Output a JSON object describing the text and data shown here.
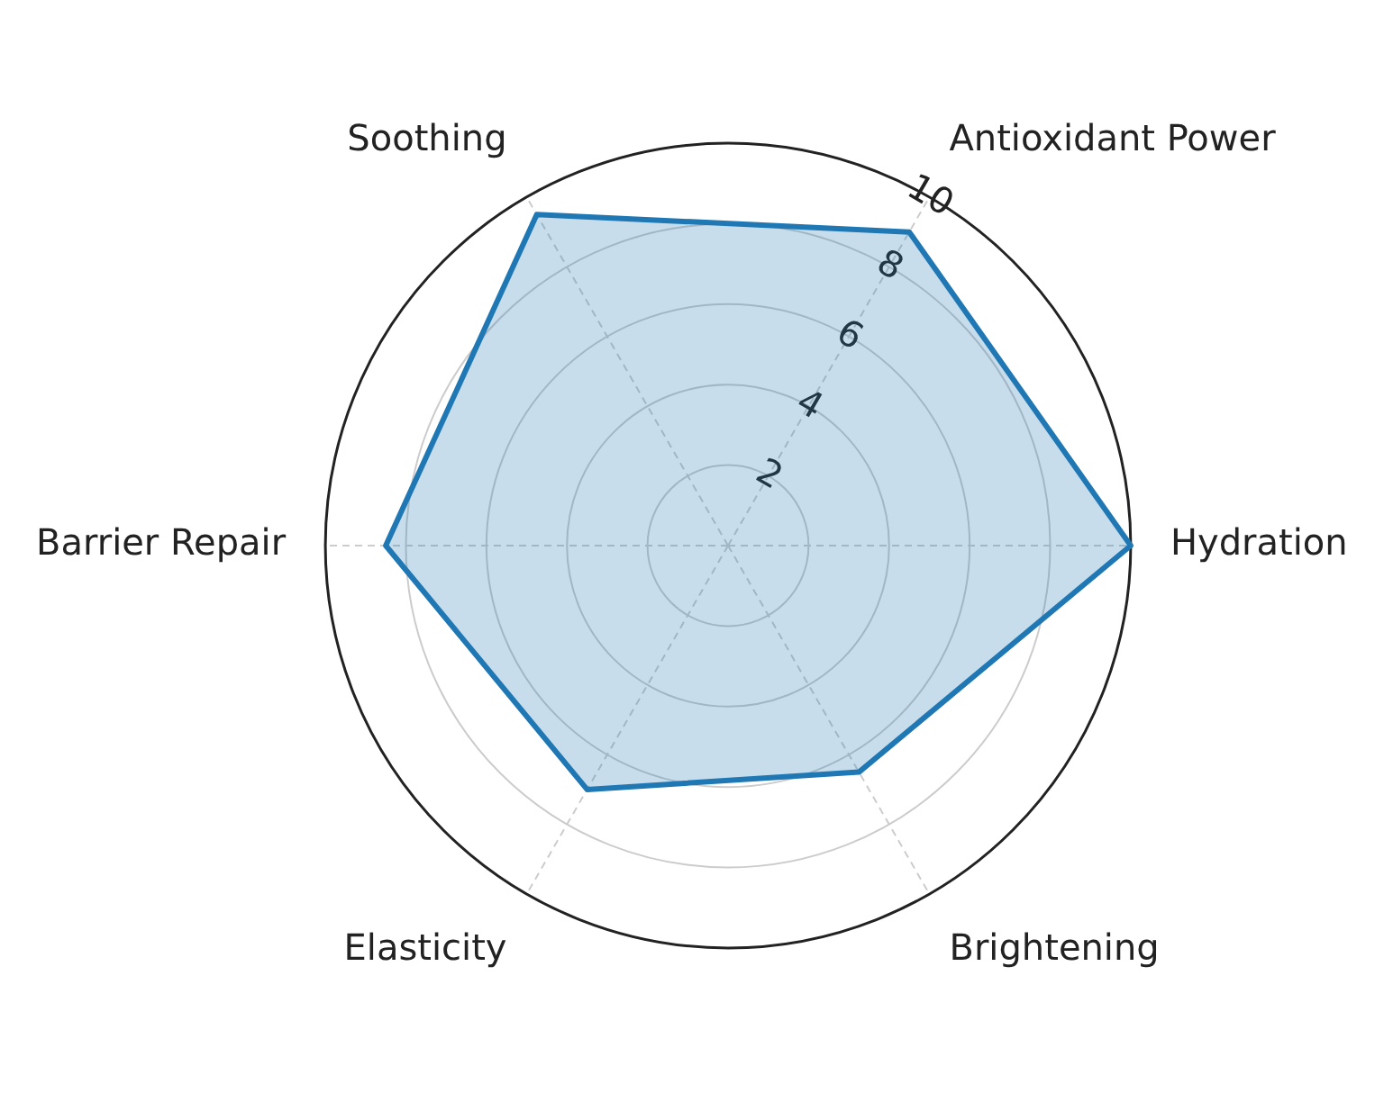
{
  "chart_data": {
    "type": "radar",
    "categories": [
      "Antioxidant Power",
      "Hydration",
      "Brightening",
      "Elasticity",
      "Barrier Repair",
      "Soothing"
    ],
    "series": [
      {
        "color": "#1f77b4",
        "values": [
          9.0,
          10,
          6.5,
          7.0,
          8.5,
          9.5
        ]
      }
    ],
    "ylim": [
      0,
      10
    ],
    "yticks": [
      2,
      4,
      6,
      8,
      10
    ],
    "grid": true,
    "legend": false
  }
}
